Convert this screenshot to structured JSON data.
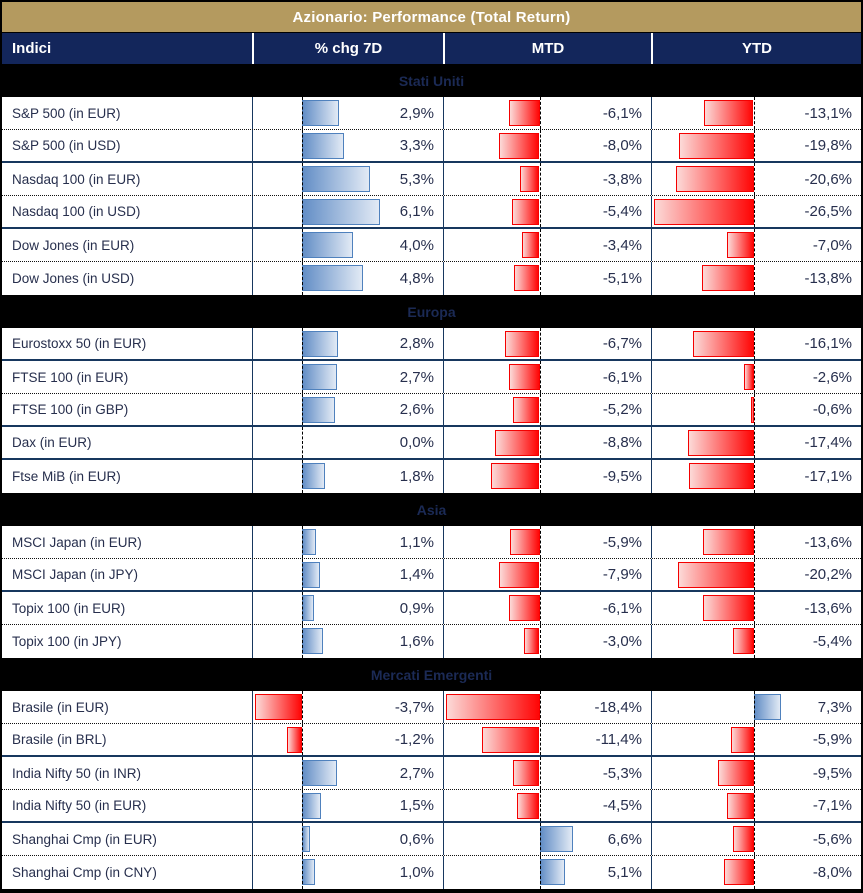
{
  "title": "Azionario: Performance (Total Return)",
  "colors": {
    "title_bg": "#B49A5F",
    "header_bg": "#13265B",
    "header_text": "#FFFFFF",
    "section_text": "#1B2A55",
    "row_text": "#272F4D",
    "positive_bar": "#638EC6",
    "positive_bar_border": "#4F81BD",
    "negative_bar": "#FF0505",
    "negative_bar_border": "#F40000",
    "grid_line": "#17375E"
  },
  "chart_data": {
    "type": "table",
    "title": "Azionario: Performance (Total Return)",
    "columns": [
      "Indici",
      "% chg 7D",
      "MTD",
      "YTD"
    ],
    "value_unit": "percent",
    "number_format": "one decimal, comma as decimal separator",
    "bar_style": "excel-gradient-data-bars, blue positive / red negative, dashed zero axis, column-wide shared scale",
    "sections": [
      {
        "label": "Stati Uniti",
        "rows": [
          {
            "label": "S&P 500 (in EUR)",
            "chg7d": 2.9,
            "mtd": -6.1,
            "ytd": -13.1,
            "sep_after": "dotted"
          },
          {
            "label": "S&P 500 (in USD)",
            "chg7d": 3.3,
            "mtd": -8.0,
            "ytd": -19.8,
            "sep_after": "solid"
          },
          {
            "label": "Nasdaq 100 (in EUR)",
            "chg7d": 5.3,
            "mtd": -3.8,
            "ytd": -20.6,
            "sep_after": "dotted"
          },
          {
            "label": "Nasdaq 100 (in USD)",
            "chg7d": 6.1,
            "mtd": -5.4,
            "ytd": -26.5,
            "sep_after": "solid"
          },
          {
            "label": "Dow Jones (in EUR)",
            "chg7d": 4.0,
            "mtd": -3.4,
            "ytd": -7.0,
            "sep_after": "dotted"
          },
          {
            "label": "Dow Jones (in USD)",
            "chg7d": 4.8,
            "mtd": -5.1,
            "ytd": -13.8,
            "sep_after": "none"
          }
        ]
      },
      {
        "label": "Europa",
        "rows": [
          {
            "label": "Eurostoxx 50 (in EUR)",
            "chg7d": 2.8,
            "mtd": -6.7,
            "ytd": -16.1,
            "sep_after": "solid"
          },
          {
            "label": "FTSE 100 (in EUR)",
            "chg7d": 2.7,
            "mtd": -6.1,
            "ytd": -2.6,
            "sep_after": "dotted"
          },
          {
            "label": "FTSE 100 (in GBP)",
            "chg7d": 2.6,
            "mtd": -5.2,
            "ytd": -0.6,
            "sep_after": "solid"
          },
          {
            "label": "Dax (in EUR)",
            "chg7d": 0.0,
            "mtd": -8.8,
            "ytd": -17.4,
            "sep_after": "solid"
          },
          {
            "label": "Ftse MiB (in EUR)",
            "chg7d": 1.8,
            "mtd": -9.5,
            "ytd": -17.1,
            "sep_after": "none"
          }
        ]
      },
      {
        "label": "Asia",
        "rows": [
          {
            "label": "MSCI Japan (in EUR)",
            "chg7d": 1.1,
            "mtd": -5.9,
            "ytd": -13.6,
            "sep_after": "dotted"
          },
          {
            "label": "MSCI Japan (in JPY)",
            "chg7d": 1.4,
            "mtd": -7.9,
            "ytd": -20.2,
            "sep_after": "solid"
          },
          {
            "label": "Topix 100 (in EUR)",
            "chg7d": 0.9,
            "mtd": -6.1,
            "ytd": -13.6,
            "sep_after": "dotted"
          },
          {
            "label": "Topix 100 (in JPY)",
            "chg7d": 1.6,
            "mtd": -3.0,
            "ytd": -5.4,
            "sep_after": "none"
          }
        ]
      },
      {
        "label": "Mercati Emergenti",
        "rows": [
          {
            "label": "Brasile (in EUR)",
            "chg7d": -3.7,
            "mtd": -18.4,
            "ytd": 7.3,
            "sep_after": "dotted"
          },
          {
            "label": "Brasile (in BRL)",
            "chg7d": -1.2,
            "mtd": -11.4,
            "ytd": -5.9,
            "sep_after": "solid"
          },
          {
            "label": "India Nifty 50 (in INR)",
            "chg7d": 2.7,
            "mtd": -5.3,
            "ytd": -9.5,
            "sep_after": "dotted"
          },
          {
            "label": "India Nifty 50 (in EUR)",
            "chg7d": 1.5,
            "mtd": -4.5,
            "ytd": -7.1,
            "sep_after": "solid"
          },
          {
            "label": "Shanghai Cmp (in EUR)",
            "chg7d": 0.6,
            "mtd": 6.6,
            "ytd": -5.6,
            "sep_after": "dotted"
          },
          {
            "label": "Shanghai Cmp (in CNY)",
            "chg7d": 1.0,
            "mtd": 5.1,
            "ytd": -8.0,
            "sep_after": "none"
          }
        ]
      }
    ]
  }
}
